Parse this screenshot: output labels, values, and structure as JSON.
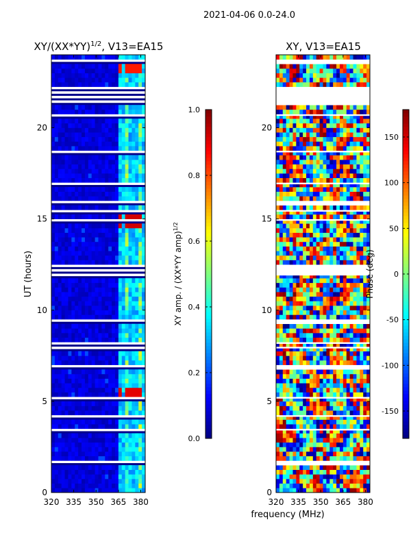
{
  "suptitle": "2021-04-06 0.0-24.0",
  "xlabel_shared": "frequency (MHz)",
  "colorscale": {
    "name": "jet",
    "stops": [
      "#00007f",
      "#0000ff",
      "#007fff",
      "#00ffff",
      "#7fff7f",
      "#ffff00",
      "#ff7f00",
      "#ff0000",
      "#7f0000"
    ],
    "background": "#00008b",
    "gap_color": "#ffffff"
  },
  "chart_data": [
    {
      "type": "heatmap",
      "id": "amp",
      "title_prefix": "XY/(XX*YY)",
      "title_exponent": "1/2",
      "title_suffix": ", V13=EA15",
      "xlabel": "",
      "ylabel": "UT (hours)",
      "xlim": [
        320,
        383
      ],
      "ylim": [
        0,
        24
      ],
      "xticks": [
        "320",
        "335",
        "350",
        "365",
        "380"
      ],
      "yticks": [
        "0",
        "5",
        "10",
        "15",
        "20"
      ],
      "colorbar": {
        "label_prefix": "XY amp. / (XX*YY amp)",
        "label_exponent": "1/2",
        "range": [
          0.0,
          1.0
        ],
        "ticks": [
          "0.0",
          "0.2",
          "0.4",
          "0.6",
          "0.8",
          "1.0"
        ]
      },
      "band_start_mhz": 363,
      "band_columns_mhz": [
        365,
        368,
        371,
        374,
        377,
        380
      ],
      "background_value": 0.05,
      "band_value": 0.45,
      "hot_spots": [
        {
          "ut": 5.2,
          "mhz": [
            365,
            369,
            373,
            377
          ],
          "value": 0.9
        },
        {
          "ut": 14.8,
          "mhz": [
            365,
            369,
            373,
            377
          ],
          "value": 0.92
        },
        {
          "ut": 23.2,
          "mhz": [
            365,
            369,
            373,
            377
          ],
          "value": 0.85
        }
      ],
      "gaps_ut": [
        [
          21.2,
          22.2
        ],
        [
          12.0,
          12.3
        ],
        [
          6.6,
          6.9
        ],
        [
          1.35,
          1.55
        ],
        [
          15.7,
          15.9
        ],
        [
          17.3,
          17.5
        ],
        [
          9.2,
          9.35
        ],
        [
          23.4,
          23.55
        ]
      ]
    },
    {
      "type": "heatmap",
      "id": "phase",
      "title": "XY, V13=EA15",
      "xlabel": "frequency (MHz)",
      "ylabel": "",
      "xlim": [
        320,
        383
      ],
      "ylim": [
        0,
        24
      ],
      "xticks": [
        "320",
        "335",
        "350",
        "365",
        "380"
      ],
      "yticks": [
        "0",
        "5",
        "10",
        "15",
        "20"
      ],
      "colorbar": {
        "label": "Phase (deg)",
        "range": [
          -180,
          180
        ],
        "ticks": [
          "-150",
          "-100",
          "-50",
          "0",
          "50",
          "100",
          "150"
        ]
      },
      "gaps_ut": [
        [
          21.2,
          22.2
        ],
        [
          12.0,
          12.3
        ],
        [
          6.6,
          6.9
        ],
        [
          1.35,
          1.55
        ],
        [
          15.7,
          15.9
        ],
        [
          17.3,
          17.5
        ],
        [
          9.2,
          9.35
        ],
        [
          23.4,
          23.55
        ]
      ]
    }
  ]
}
